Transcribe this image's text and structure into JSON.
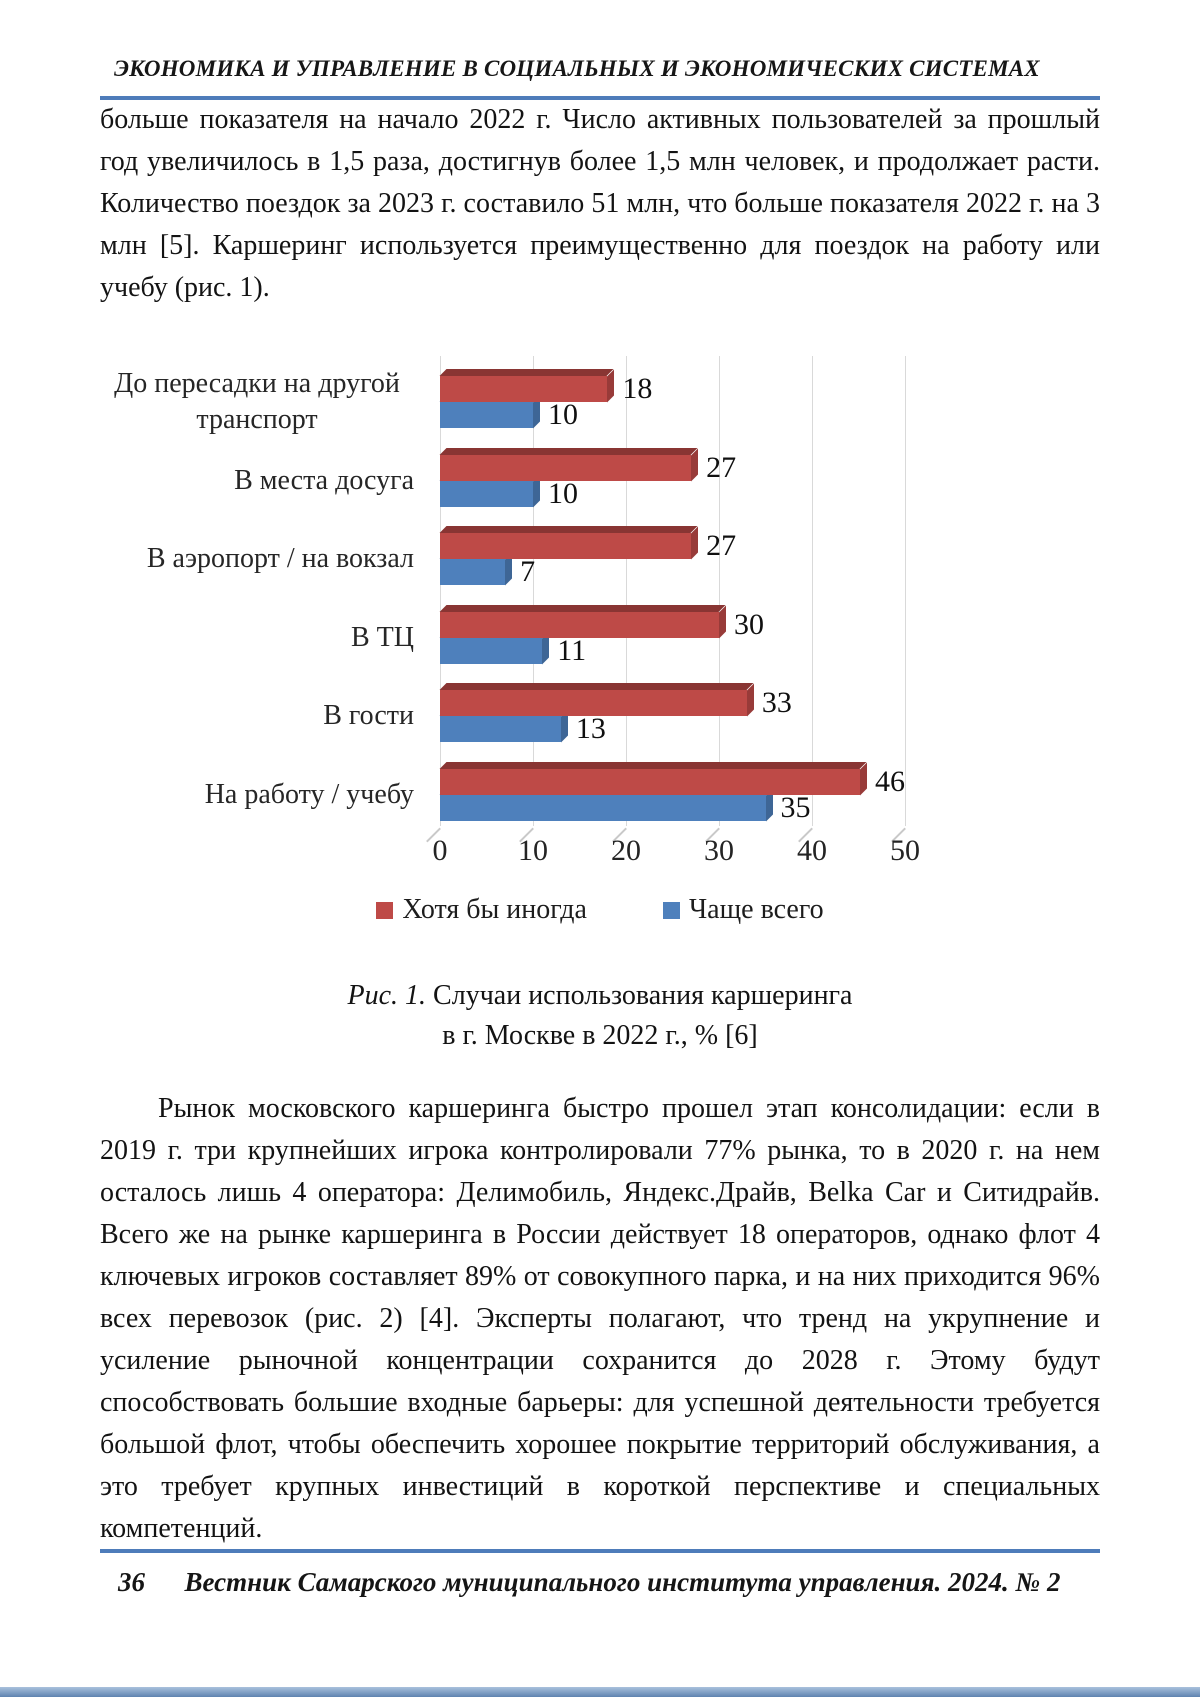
{
  "page": {
    "header": "ЭКОНОМИКА И УПРАВЛЕНИЕ В СОЦИАЛЬНЫХ И ЭКОНОМИЧЕСКИХ СИСТЕМАХ",
    "paragraph1": "больше показателя на начало 2022 г. Число активных пользователей за прошлый год увеличилось в 1,5 раза, достигнув более 1,5 млн человек, и продолжает расти. Количество поездок за 2023 г. составило 51 млн, что больше показателя 2022 г. на 3 млн [5]. Каршеринг используется преимущественно для поездок на работу или учебу (рис. 1).",
    "caption": {
      "prefix": "Рис. 1.",
      "line1": " Случаи использования каршеринга",
      "line2": "в г. Москве в 2022 г., % [6]"
    },
    "paragraph2": "Рынок московского каршеринга быстро прошел этап консолидации: если в 2019 г. три крупнейших игрока контролировали 77% рынка, то в 2020 г. на нем осталось лишь 4 оператора: Делимобиль, Яндекс.Драйв, Belka Car и Ситидрайв. Всего же на рынке каршеринга в России действует 18 операторов, однако флот 4 ключевых игроков составляет 89% от совокупного парка, и на них приходится 96% всех перевозок (рис. 2) [4]. Эксперты полагают, что тренд на укрупнение и усиление рыночной концентрации сохранится до 2028 г. Этому будут способствовать большие входные барьеры: для успешной деятельности требуется большой флот, чтобы обеспечить хорошее покрытие территорий обслуживания, а это требует крупных инвестиций в короткой перспективе и специальных компетенций.",
    "footer": {
      "page_number": "36",
      "journal": "Вестник Самарского муниципального института управления. 2024. № 2"
    }
  },
  "chart_data": {
    "type": "bar",
    "orientation": "horizontal",
    "style": "3d",
    "categories": [
      "До пересадки на другой транспорт",
      "В места досуга",
      "В аэропорт / на вокзал",
      "В ТЦ",
      "В гости",
      "На работу / учебу"
    ],
    "series": [
      {
        "name": "Хотя бы иногда",
        "color": "#BE4A47",
        "values": [
          18,
          27,
          27,
          30,
          33,
          46
        ]
      },
      {
        "name": "Чаще всего",
        "color": "#4E80BC",
        "values": [
          10,
          10,
          7,
          11,
          13,
          35
        ]
      }
    ],
    "xlim": [
      0,
      50
    ],
    "xticks": [
      0,
      10,
      20,
      30,
      40,
      50
    ],
    "grid": true,
    "legend_position": "bottom",
    "value_labels": true
  },
  "colors": {
    "rule_blue": "#4E7CBA",
    "gridline": "#D9D9D9",
    "bottom_bar_top": "#A9C1DD",
    "bottom_bar_bottom": "#5E83B0"
  }
}
